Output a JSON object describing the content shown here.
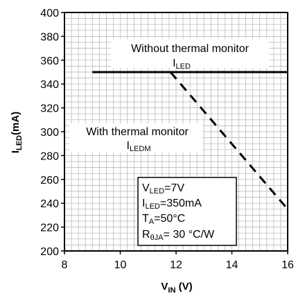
{
  "chart_data": {
    "type": "line",
    "title": "",
    "xlabel": {
      "main": "V",
      "sub": "IN",
      "unit": " (V)"
    },
    "ylabel": {
      "main": "I",
      "sub": "LED",
      "unit": "(mA)"
    },
    "xlim": [
      8,
      16
    ],
    "ylim": [
      200,
      400
    ],
    "x_ticks": [
      "8",
      "10",
      "12",
      "14",
      "16"
    ],
    "y_ticks": [
      "200",
      "220",
      "240",
      "260",
      "280",
      "300",
      "320",
      "340",
      "360",
      "380",
      "400"
    ],
    "x_minor_step": 0.25,
    "y_minor_step": 5,
    "grid": true,
    "legend": "none",
    "series": [
      {
        "style": "solid",
        "x": [
          9,
          16
        ],
        "y": [
          350,
          350
        ]
      },
      {
        "style": "dashed",
        "x": [
          11.8,
          16
        ],
        "y": [
          350,
          235
        ]
      }
    ],
    "annotations": {
      "without_line1": "Without thermal monitor",
      "without_line2_main": "I",
      "without_line2_sub": "LED",
      "with_line1": "With thermal monitor",
      "with_line2_main": "I",
      "with_line2_sub": "LEDM"
    },
    "conditions": [
      {
        "main": "V",
        "sub": "LED",
        "rest": "=7V"
      },
      {
        "main": "I",
        "sub": "LED",
        "rest": "=350mA"
      },
      {
        "main": "T",
        "sub": "A",
        "rest": "=50°C"
      },
      {
        "main": "R",
        "sub": "θJA",
        "rest": "= 30 °C/W"
      }
    ],
    "colors": {
      "line": "#000000",
      "grid": "#b0b0b0",
      "frame": "#000000"
    }
  }
}
